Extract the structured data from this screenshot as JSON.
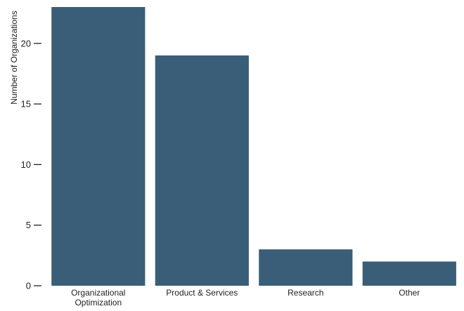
{
  "chart_data": {
    "type": "bar",
    "title": "",
    "xlabel": "",
    "ylabel": "Number of Organizations",
    "categories": [
      [
        "Organizational",
        "Optimization"
      ],
      [
        "Product & Services"
      ],
      [
        "Research"
      ],
      [
        "Other"
      ]
    ],
    "values": [
      23,
      19,
      3,
      2
    ],
    "ylim": [
      0,
      23
    ],
    "yticks": [
      0,
      5,
      10,
      15,
      20
    ],
    "grid": false,
    "legend": "none",
    "bar_color": "#3b5e78"
  }
}
